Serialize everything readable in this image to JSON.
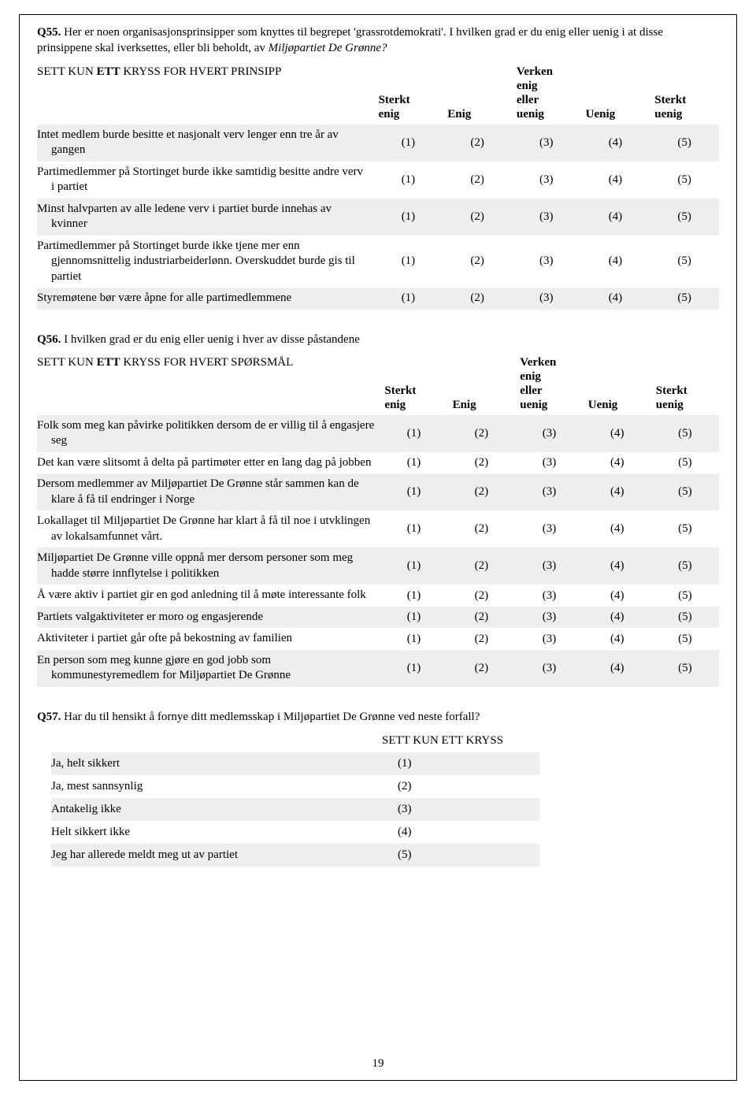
{
  "page_number": "19",
  "q55": {
    "number": "Q55.",
    "text_a": "Her er noen organisasjonsprinsipper som knyttes til begrepet 'grassrotdemokrati'. I hvilken grad er du enig eller uenig i at disse prinsippene skal iverksettes, eller bli beholdt, av ",
    "text_b_italic": "Miljøpartiet De Grønne?",
    "instruction_a": "SETT KUN ",
    "instruction_b": "ETT",
    "instruction_c": " KRYSS FOR HVERT PRINSIPP",
    "headers": [
      "Sterkt enig",
      "Enig",
      "Verken enig eller uenig",
      "Uenig",
      "Sterkt uenig"
    ],
    "values": [
      "(1)",
      "(2)",
      "(3)",
      "(4)",
      "(5)"
    ],
    "rows": [
      "Intet medlem burde besitte et nasjonalt verv lenger enn tre år av gangen",
      "Partimedlemmer på Stortinget burde ikke samtidig besitte andre verv i partiet",
      "Minst halvparten av alle ledene verv i partiet burde innehas av kvinner",
      "Partimedlemmer på Stortinget burde ikke tjene mer enn gjennomsnittelig industriarbeiderlønn. Overskuddet burde gis til partiet",
      "Styremøtene bør være åpne for alle partimedlemmene"
    ]
  },
  "q56": {
    "number": "Q56.",
    "text": "I hvilken grad er du enig eller uenig i hver av disse påstandene",
    "instruction_a": "SETT KUN ",
    "instruction_b": "ETT",
    "instruction_c": " KRYSS FOR HVERT SPØRSMÅL",
    "headers": [
      "Sterkt enig",
      "Enig",
      "Verken enig eller uenig",
      "Uenig",
      "Sterkt uenig"
    ],
    "values": [
      "(1)",
      "(2)",
      "(3)",
      "(4)",
      "(5)"
    ],
    "rows": [
      "Folk som meg kan påvirke politikken dersom de er villig til å engasjere seg",
      "Det kan være slitsomt å delta på partimøter etter en lang dag på jobben",
      "Dersom medlemmer av Miljøpartiet De Grønne står sammen kan de klare å få til endringer i Norge",
      "Lokallaget til Miljøpartiet De Grønne har klart å få til noe i utvklingen av lokalsamfunnet vårt.",
      "Miljøpartiet De Grønne ville oppnå mer dersom personer som meg hadde større innflytelse i politikken",
      "Å være aktiv i partiet gir en god anledning til å møte interessante folk",
      "Partiets valgaktiviteter er moro og engasjerende",
      "Aktiviteter i partiet går ofte på bekostning av familien",
      "En person som meg kunne gjøre en god jobb som kommunestyremedlem for Miljøpartiet De Grønne"
    ]
  },
  "q57": {
    "number": "Q57.",
    "text": "Har du til hensikt å fornye ditt medlemsskap i Miljøpartiet De Grønne ved neste forfall?",
    "header": "SETT KUN ETT KRYSS",
    "rows": [
      {
        "label": "Ja, helt sikkert",
        "val": "(1)"
      },
      {
        "label": "Ja, mest sannsynlig",
        "val": "(2)"
      },
      {
        "label": "Antakelig ikke",
        "val": "(3)"
      },
      {
        "label": "Helt sikkert ikke",
        "val": "(4)"
      },
      {
        "label": "Jeg har allerede meldt meg ut av partiet",
        "val": "(5)"
      }
    ]
  }
}
